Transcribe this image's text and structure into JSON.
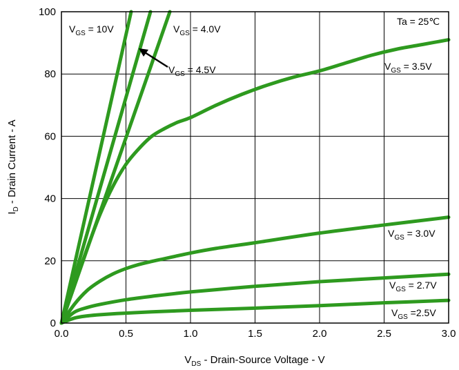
{
  "chart_data": {
    "type": "line",
    "xlabel": {
      "main": "V",
      "sub": "DS",
      "rest": " - Drain-Source Voltage - V"
    },
    "ylabel": {
      "main": "I",
      "sub": "D",
      "rest": " - Drain Current - A"
    },
    "xlim": [
      0,
      3.0
    ],
    "ylim": [
      0,
      100
    ],
    "x_ticks": [
      "0.0",
      "0.5",
      "1.0",
      "1.5",
      "2.0",
      "2.5",
      "3.0"
    ],
    "y_ticks": [
      "0",
      "20",
      "40",
      "60",
      "80",
      "100"
    ],
    "grid": true,
    "line_color": "#2e9a1f",
    "series": [
      {
        "key": "vgs10",
        "x": [
          0,
          0.54
        ],
        "y": [
          0,
          100
        ]
      },
      {
        "key": "vgs45",
        "x": [
          0,
          0.69
        ],
        "y": [
          0,
          100
        ]
      },
      {
        "key": "vgs40",
        "x": [
          0,
          0.84
        ],
        "y": [
          0,
          100
        ]
      },
      {
        "key": "vgs35",
        "x": [
          0,
          0.1,
          0.2,
          0.3,
          0.4,
          0.5,
          0.6,
          0.7,
          0.8,
          0.9,
          1.0,
          1.2,
          1.4,
          1.6,
          1.8,
          2.0,
          2.2,
          2.4,
          2.6,
          2.8,
          3.0
        ],
        "y": [
          0,
          12,
          24,
          35,
          44,
          51,
          56,
          60,
          62.5,
          64.5,
          66,
          70,
          73.5,
          76.5,
          79,
          81,
          83.5,
          86,
          88,
          89.5,
          91
        ]
      },
      {
        "key": "vgs30",
        "x": [
          0,
          0.1,
          0.2,
          0.3,
          0.4,
          0.5,
          0.6,
          0.7,
          0.8,
          1.0,
          1.2,
          1.5,
          2.0,
          2.5,
          3.0
        ],
        "y": [
          0,
          6,
          10.5,
          13.5,
          15.8,
          17.5,
          18.8,
          19.8,
          20.7,
          22.5,
          24,
          25.8,
          28.9,
          31.5,
          34
        ]
      },
      {
        "key": "vgs27",
        "x": [
          0,
          0.1,
          0.2,
          0.3,
          0.5,
          0.7,
          1.0,
          1.5,
          2.0,
          2.5,
          3.0
        ],
        "y": [
          0,
          3.5,
          5,
          6,
          7.5,
          8.6,
          10,
          11.8,
          13.3,
          14.5,
          15.7
        ]
      },
      {
        "key": "vgs25",
        "x": [
          0,
          0.1,
          0.2,
          0.3,
          0.5,
          0.7,
          1.0,
          1.5,
          2.0,
          2.5,
          3.0
        ],
        "y": [
          0,
          1.6,
          2.3,
          2.7,
          3.2,
          3.6,
          4.1,
          4.8,
          5.6,
          6.5,
          7.3
        ]
      }
    ],
    "annotations": [
      {
        "key": "a10",
        "main": "V",
        "sub": "GS",
        "rest": " = 10V"
      },
      {
        "key": "a40",
        "main": "V",
        "sub": "GS",
        "rest": " = 4.0V"
      },
      {
        "key": "a45",
        "main": "V",
        "sub": "GS",
        "rest": " = 4.5V"
      },
      {
        "key": "a35",
        "main": "V",
        "sub": "GS",
        "rest": " = 3.5V"
      },
      {
        "key": "a30",
        "main": "V",
        "sub": "GS",
        "rest": " = 3.0V"
      },
      {
        "key": "a27",
        "main": "V",
        "sub": "GS",
        "rest": " = 2.7V"
      },
      {
        "key": "a25",
        "main": "V",
        "sub": "GS",
        "rest": " =2.5V"
      },
      {
        "key": "ta",
        "main": "Ta = 25℃",
        "sub": "",
        "rest": ""
      }
    ]
  }
}
